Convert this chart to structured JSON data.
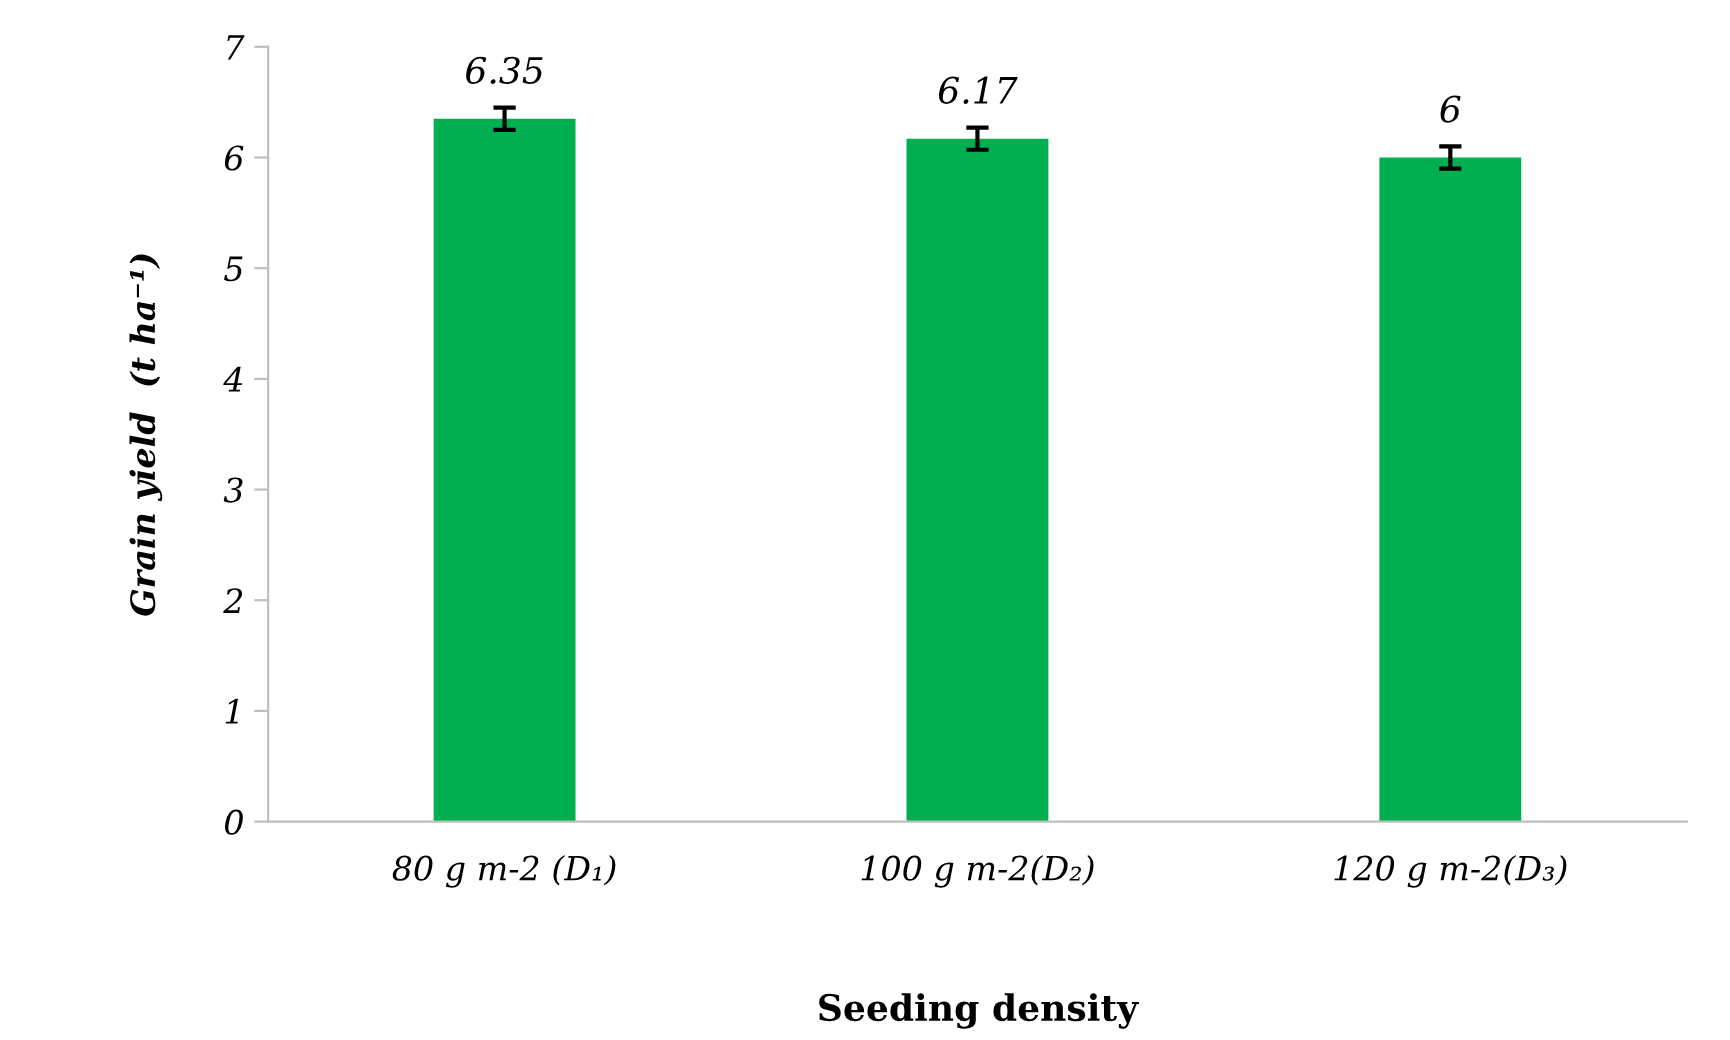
{
  "chart_data": {
    "type": "bar",
    "xlabel": "Seeding density",
    "ylabel": "Grain yield  (t ha⁻¹)",
    "categories": [
      "80 g m-2 (D₁)",
      "100 g m-2(D₂)",
      "120 g m-2(D₃)"
    ],
    "values": [
      6.35,
      6.17,
      6
    ],
    "color": "#00b050",
    "errors": [
      0.1,
      0.1,
      0.1
    ],
    "value_labels": [
      "6.35",
      "6.17",
      "6"
    ],
    "ylim": [
      0,
      7
    ],
    "yticks": [
      0,
      1,
      2,
      3,
      4,
      5,
      6,
      7
    ],
    "grid": false,
    "legend": false
  }
}
